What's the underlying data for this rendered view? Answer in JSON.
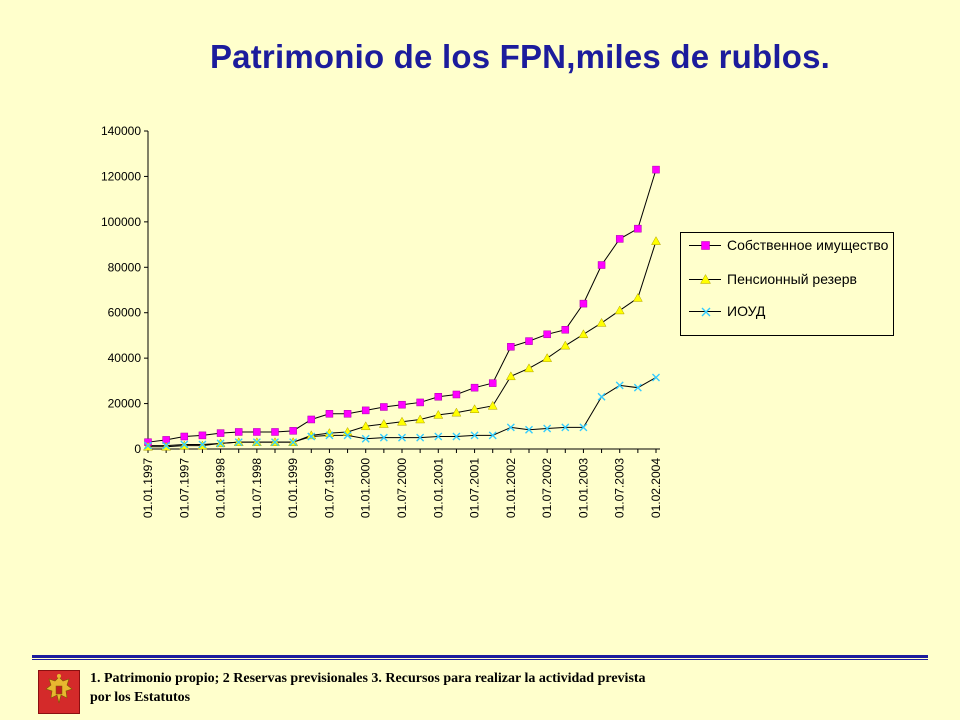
{
  "page": {
    "title": "Patrimonio de los FPN,miles de rublos.",
    "footnote": "1. Patrimonio propio; 2 Reservas previsionales 3. Recursos para realizar la actividad prevista por los Estatutos",
    "colors": {
      "background": "#FFFFCC",
      "title": "#1C1C9C",
      "divider": "#1C1C9C"
    },
    "emblem_icon": "russian-coat-of-arms-icon"
  },
  "chart_data": {
    "type": "line",
    "title": "Patrimonio de los FPN,miles de rublos.",
    "xlabel": "",
    "ylabel": "",
    "ylim": [
      0,
      140000
    ],
    "yticks": [
      0,
      20000,
      40000,
      60000,
      80000,
      100000,
      120000,
      140000
    ],
    "ytick_labels": [
      "0",
      "20000",
      "40000",
      "60000",
      "80000",
      "100000",
      "120000",
      "140000"
    ],
    "x_labels": [
      "01.01.1997",
      "01.07.1997",
      "01.01.1998",
      "01.07.1998",
      "01.01.1999",
      "01.07.1999",
      "01.01.2000",
      "01.07.2000",
      "01.01.2001",
      "01.07.2001",
      "01.01.2002",
      "01.07.2002",
      "01.01.2003",
      "01.07.2003",
      "01.02.2004"
    ],
    "grid": false,
    "legend_position": "right",
    "series": [
      {
        "name": "Собственное имущество",
        "color": "#FF00FF",
        "marker": "square",
        "values": [
          3000,
          4000,
          5500,
          6000,
          7000,
          7500,
          7500,
          7500,
          8000,
          13000,
          15500,
          15500,
          17000,
          18500,
          19500,
          20500,
          23000,
          24000,
          27000,
          29000,
          45000,
          47500,
          50500,
          52500,
          64000,
          81000,
          92500,
          97000,
          123000
        ]
      },
      {
        "name": "Пенсионный резерв",
        "color": "#FFFF00",
        "marker": "triangle",
        "values": [
          1000,
          1000,
          1500,
          1500,
          2500,
          3000,
          3000,
          3000,
          3000,
          6000,
          7000,
          7500,
          10000,
          11000,
          12000,
          13000,
          15000,
          16000,
          17500,
          19000,
          32000,
          35500,
          40000,
          45500,
          50500,
          55500,
          61000,
          66500,
          91500
        ]
      },
      {
        "name": "ИОУД",
        "color": "#33CCFF",
        "marker": "x",
        "values": [
          1500,
          1500,
          2000,
          2000,
          2500,
          3000,
          3000,
          3000,
          3000,
          5500,
          6000,
          6000,
          4500,
          5000,
          5000,
          5000,
          5500,
          5500,
          6000,
          6000,
          9500,
          8500,
          9000,
          9500,
          9500,
          23000,
          28000,
          27000,
          31500
        ]
      }
    ]
  }
}
